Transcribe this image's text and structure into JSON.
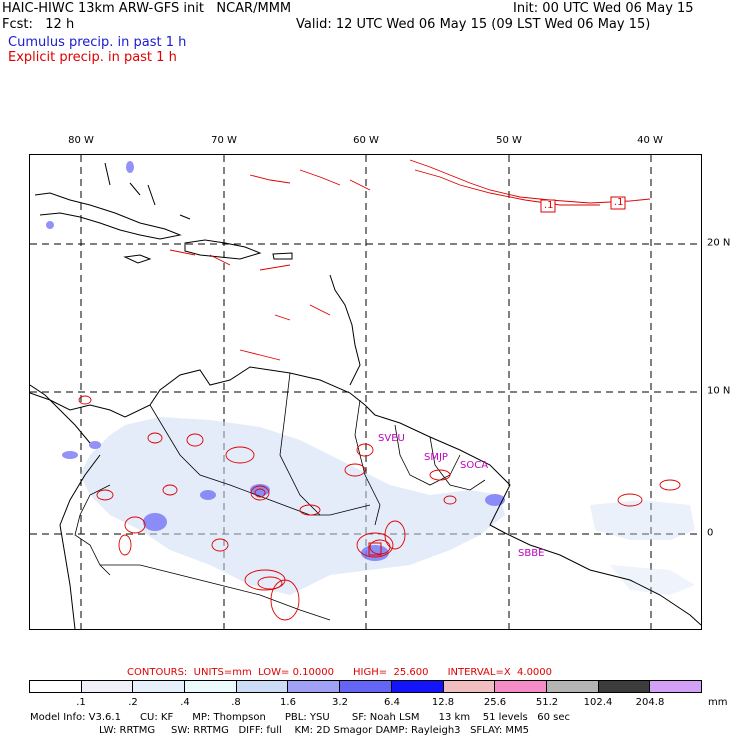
{
  "header": {
    "title_left": "HAIC-HIWC 13km ARW-GFS init   NCAR/MMM",
    "fcst": "Fcst:   12 h",
    "init": "Init: 00 UTC Wed 06 May 15",
    "valid": "Valid: 12 UTC Wed 06 May 15 (09 LST Wed 06 May 15)",
    "cumulus_label": "Cumulus precip. in past 1 h",
    "explicit_label": "Explicit precip. in past 1 h",
    "colors": {
      "cumulus": "#1a1ad0",
      "explicit": "#e00000"
    }
  },
  "map": {
    "lon_labels": [
      "80 W",
      "70 W",
      "60 W",
      "50 W",
      "40 W"
    ],
    "lat_labels": [
      "20 N",
      "10 N",
      "0"
    ],
    "stations": [
      "SVEU",
      "SMJP",
      "SOCA",
      "SBBE"
    ],
    "contour_labels": [
      ".1",
      ".1"
    ]
  },
  "contours_line": {
    "units_label": "CONTOURS:  UNITS=mm  LOW= 0.10000      HIGH=  25.600      INTERVAL=X  4.0000"
  },
  "colorbar": {
    "labels": [
      ".1",
      ".2",
      ".4",
      ".8",
      "1.6",
      "3.2",
      "6.4",
      "12.8",
      "25.6",
      "51.2",
      "102.4",
      "204.8"
    ],
    "unit": "mm",
    "colors": [
      "#ffffff",
      "#f0f0f8",
      "#e6f0fa",
      "#ebfafa",
      "#cddcf5",
      "#a0a0f5",
      "#6464f5",
      "#1414fa",
      "#f0bebe",
      "#f58cc8",
      "#b4b4b4",
      "#3c3c3c",
      "#d2a0f5"
    ]
  },
  "model_info": {
    "line1": "Model Info: V3.6.1      CU: KF      MP: Thompson      PBL: YSU       SF: Noah LSM      13 km    51 levels   60 sec",
    "line2": "LW: RRTMG     SW: RRTMG   DIFF: full    KM: 2D Smagor DAMP: Rayleigh3   SFLAY: MM5"
  }
}
